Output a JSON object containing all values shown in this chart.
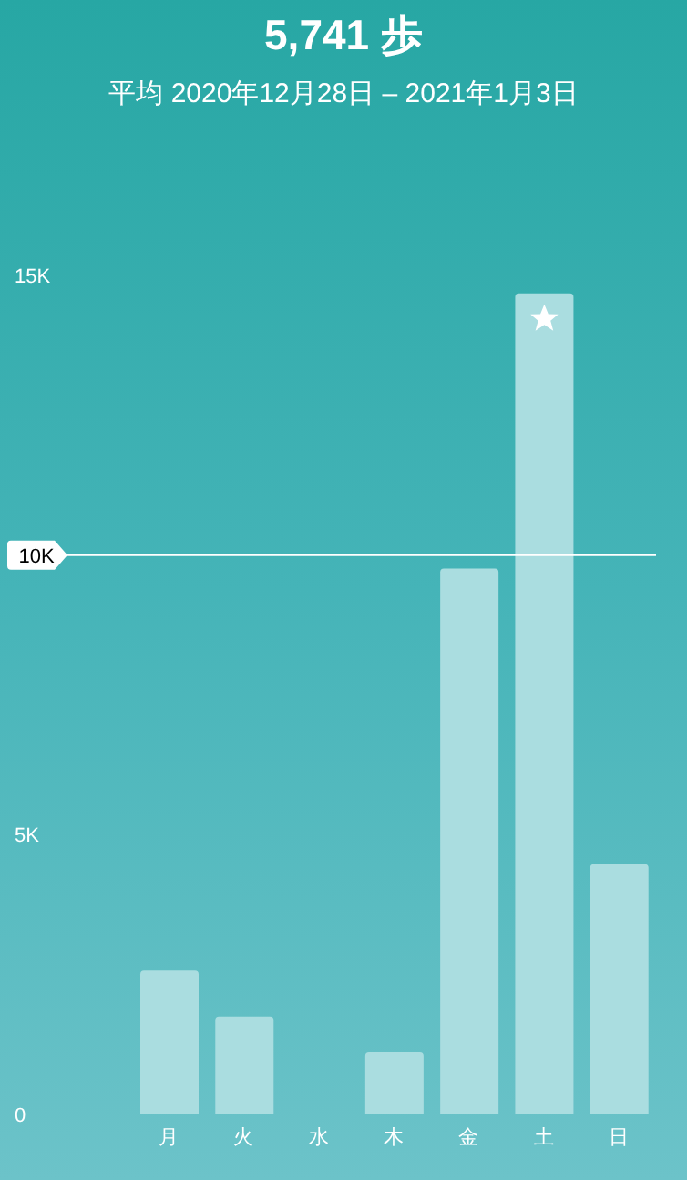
{
  "chart_data": {
    "type": "bar",
    "title": "5,741 歩",
    "subtitle": "平均 2020年12月28日 – 2021年1月3日",
    "categories": [
      "月",
      "火",
      "水",
      "木",
      "金",
      "土",
      "日"
    ],
    "values": [
      2570,
      1750,
      0,
      1110,
      9760,
      14680,
      4470
    ],
    "color": "#aadde0",
    "ylim": [
      0,
      15000
    ],
    "yticks": [
      {
        "value": 0,
        "label": "0"
      },
      {
        "value": 5000,
        "label": "5K"
      },
      {
        "value": 15000,
        "label": "15K"
      }
    ],
    "ref_lines": [
      {
        "axis": "y",
        "value": 10000,
        "label": "10K",
        "color": "#ffffff"
      }
    ],
    "grid": false,
    "legend": false
  }
}
